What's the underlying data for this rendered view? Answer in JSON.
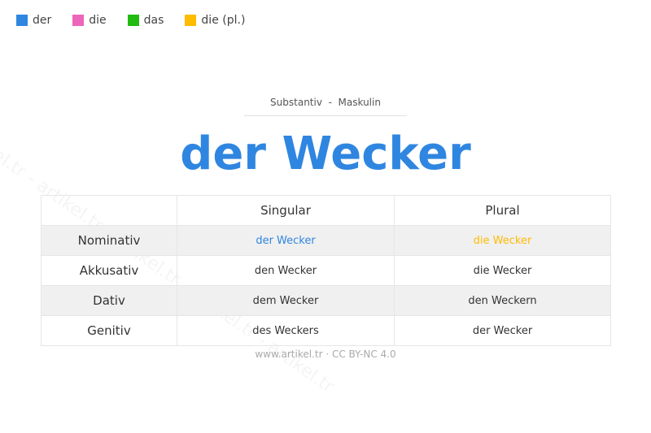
{
  "legend": [
    {
      "label": "der",
      "color": "#2f86e0"
    },
    {
      "label": "die",
      "color": "#ee66bb"
    },
    {
      "label": "das",
      "color": "#22bb11"
    },
    {
      "label": "die (pl.)",
      "color": "#ffbb00"
    }
  ],
  "subtitle": "Substantiv  -  Maskulin",
  "title": "der Wecker",
  "table": {
    "headers": [
      "",
      "Singular",
      "Plural"
    ],
    "rows": [
      {
        "case": "Nominativ",
        "singular": "der Wecker",
        "plural": "die Wecker"
      },
      {
        "case": "Akkusativ",
        "singular": "den Wecker",
        "plural": "die Wecker"
      },
      {
        "case": "Dativ",
        "singular": "dem Wecker",
        "plural": "den Weckern"
      },
      {
        "case": "Genitiv",
        "singular": "des Weckers",
        "plural": "der Wecker"
      }
    ],
    "highlight_singular_color": "#2f86e0",
    "highlight_plural_color": "#ffbb00"
  },
  "footer": "www.artikel.tr · CC BY-NC 4.0",
  "watermark": "artikel.tr - artikel.tr - artikel.tr - artikel.tr - artikel.tr"
}
